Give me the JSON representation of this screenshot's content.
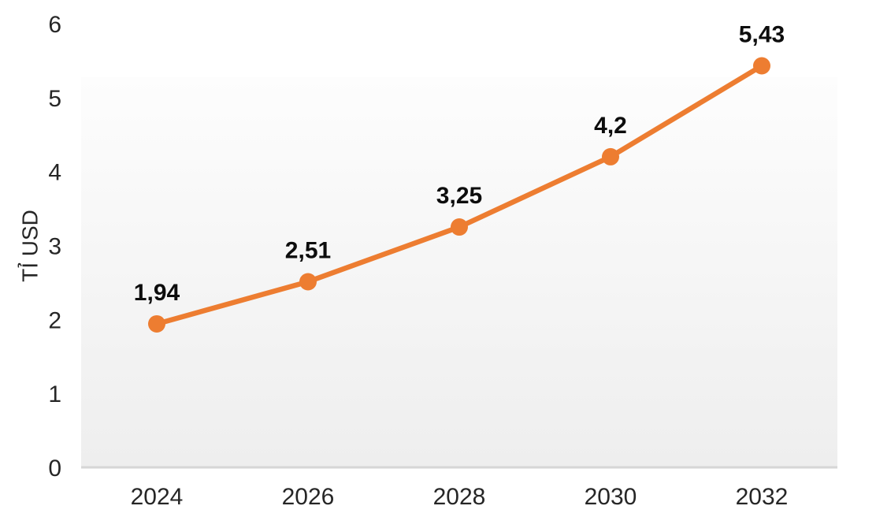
{
  "chart_data": {
    "type": "line",
    "title": "",
    "xlabel": "",
    "ylabel": "TỈ USD",
    "categories": [
      "2024",
      "2026",
      "2028",
      "2030",
      "2032"
    ],
    "values": [
      1.94,
      2.51,
      3.25,
      4.2,
      5.43
    ],
    "point_labels": [
      "1,94",
      "2,51",
      "3,25",
      "4,2",
      "5,43"
    ],
    "yticks": [
      0,
      1,
      2,
      3,
      4,
      5,
      6
    ],
    "ylim": [
      0,
      6
    ],
    "grid": false,
    "legend_position": "none",
    "decimal_separator": ",",
    "colors": {
      "series": "#ED7D31",
      "data_label": "#0d0d0d",
      "tick_label": "#262626",
      "axis_title": "#262626",
      "plot_bg_top": "#fdfdfd",
      "plot_bg_bottom": "#eeeeee",
      "axis_line": "#d6d6d6",
      "background": "#ffffff"
    }
  }
}
